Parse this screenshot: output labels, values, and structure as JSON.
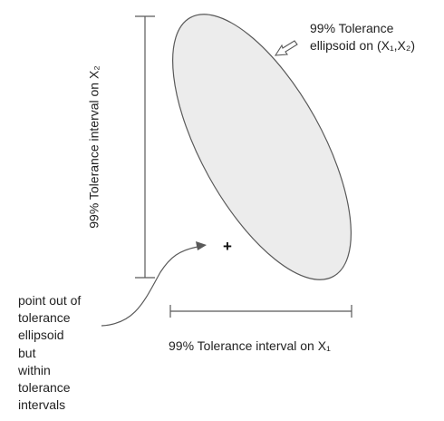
{
  "ellipse_label": {
    "line1": "99% Tolerance",
    "line2": "ellipsoid on (X₁,X₂)"
  },
  "x1_label": "99% Tolerance interval on X₁",
  "x2_label": "99% Tolerance interval on X₂",
  "point_marker": "+",
  "point_label": [
    "point out of",
    "tolerance",
    "ellipsoid",
    "but",
    "within",
    "tolerance",
    "intervals"
  ],
  "colors": {
    "ellipse_fill": "#ececec",
    "stroke": "#595959",
    "text": "#222222"
  },
  "icons": {
    "callout_arrow": "hollow-arrow-icon",
    "pointer": "curved-arrow-icon"
  }
}
